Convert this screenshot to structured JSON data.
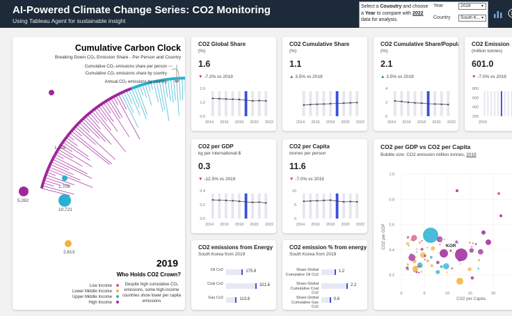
{
  "header": {
    "title": "AI-Powered Climate Change Series: CO2 Monitoring",
    "subtitle": "Using Tableau Agent for sustainable insight"
  },
  "controls": {
    "i1": "Select a ",
    "i2": "Cououtry",
    "i3": " and choose a ",
    "i4": "Year",
    "i5": " to compare with ",
    "i6": "2022",
    "i7": " data for analysis.",
    "year_label": "Year",
    "year_value": "2019",
    "country_label": "Country",
    "country_value": "South K..."
  },
  "clock": {
    "title": "Cumulative Carbon Clock",
    "subtitle": "Breaking Down CO₂ Emission Share - Per Person and Country",
    "legend": [
      "Cumulative CO₂ emissions share per person",
      "Cumulative CO₂ emissions share by country",
      "Annual CO₂ emissions by country"
    ],
    "labels": [
      "1,105",
      "1,705",
      "10,721",
      "5,262",
      "2,613"
    ],
    "year": "2019",
    "question": "Who Holds CO2 Crown?",
    "income_groups": [
      {
        "label": "Low Income",
        "color": "#d6567c"
      },
      {
        "label": "Lower Middle Income",
        "color": "#f4b23a"
      },
      {
        "label": "Upper Middle Income",
        "color": "#2ab0d0"
      },
      {
        "label": "High Income",
        "color": "#a0279b"
      }
    ],
    "note": "Despite high cumulative CO₂ emissions, some high-income countries show lower per capita emissions"
  },
  "cards": [
    {
      "title": "CO2 Global Share",
      "unit": "(%)",
      "value": "1.6",
      "change": "-7.2% vs 2019",
      "dir": "down",
      "yticks": [
        "2.0",
        "1.0",
        "0.0"
      ],
      "xticks": [
        "2014",
        "2016",
        "2018",
        "2020",
        "2022"
      ],
      "trend": [
        0.64,
        0.63,
        0.62,
        0.61,
        0.6,
        0.58,
        0.55,
        0.56,
        0.55
      ]
    },
    {
      "title": "CO2 Cumulative Share",
      "unit": "(%)",
      "value": "1.1",
      "change": "3.5% vs 2019",
      "dir": "up",
      "yticks": [],
      "xticks": [
        "2014",
        "2016",
        "2018",
        "2020",
        "2022"
      ],
      "trend": [
        0.4,
        0.42,
        0.43,
        0.44,
        0.45,
        0.46,
        0.47,
        0.48,
        0.49
      ]
    },
    {
      "title": "CO2 Cumulative Share/Population",
      "unit": "(%)",
      "value": "2.1",
      "change": "3.5% vs 2019",
      "dir": "up",
      "yticks": [
        "4",
        "2",
        "0"
      ],
      "xticks": [
        "2014",
        "2016",
        "2018",
        "2020",
        "2022"
      ],
      "trend": [
        0.55,
        0.53,
        0.5,
        0.48,
        0.47,
        0.45,
        0.44,
        0.43,
        0.42
      ]
    },
    {
      "title": "CO2 Emission",
      "unit": "(million tonnes)",
      "value": "601.0",
      "change": "-7.0% vs 2019",
      "dir": "down",
      "yticks": [
        "800",
        "600",
        "400",
        "200"
      ],
      "xticks": [
        "2016"
      ],
      "trend": []
    },
    {
      "title": "CO2 per GDP",
      "unit": "kg per international-$",
      "value": "0.3",
      "change": "-12.5% vs 2019",
      "dir": "down",
      "yticks": [
        "0.4",
        "0.2",
        "0.0"
      ],
      "xticks": [
        "2014",
        "2016",
        "2018",
        "2020",
        "2022"
      ],
      "trend": [
        0.67,
        0.66,
        0.65,
        0.64,
        0.62,
        0.6,
        0.58,
        0.59,
        0.56
      ]
    },
    {
      "title": "CO2 per Capita",
      "unit": "tonnes per person",
      "value": "11.6",
      "change": "-7.0% vs 2019",
      "dir": "down",
      "yticks": [
        "10",
        "5",
        "0"
      ],
      "xticks": [
        "2014",
        "2016",
        "2018",
        "2020",
        "2022"
      ],
      "trend": [
        0.62,
        0.63,
        0.64,
        0.65,
        0.66,
        0.63,
        0.6,
        0.61,
        0.6
      ]
    }
  ],
  "energy": {
    "title": "CO2 emissions from Energy",
    "subtitle": "South Korea from 2019",
    "rows": [
      {
        "label": "Oil Co2",
        "value": "175.8",
        "frac": 0.55
      },
      {
        "label": "Coal Co2",
        "value": "321.6",
        "frac": 1.0
      },
      {
        "label": "Gas Co2",
        "value": "113.8",
        "frac": 0.35
      }
    ]
  },
  "energy_pct": {
    "title": "CO2 emission % from energy",
    "subtitle": "South Korea from 2019",
    "rows": [
      {
        "label": "Share Global Cumulative Oil Co2",
        "value": "1.2",
        "frac": 0.55
      },
      {
        "label": "Share Global Cumulative Coal Co2",
        "value": "2.2",
        "frac": 1.0
      },
      {
        "label": "Share Global Cumulative Gas Co2",
        "value": "0.8",
        "frac": 0.36
      }
    ]
  },
  "scatter": {
    "title": "CO2 per GDP vs CO2 per Capita",
    "subtitle_a": "Bubble size: CO2 emission million tonnes, ",
    "subtitle_b": "2019",
    "xlabel": "CO2 per Capita",
    "ylabel": "CO2 per GDP",
    "xticks": [
      "0",
      "5",
      "10",
      "15",
      "20",
      "25"
    ],
    "yticks": [
      "1.0",
      "0.8",
      "0.6",
      "0.4",
      "0.2"
    ],
    "highlight": "KOR"
  },
  "colors": {
    "header": "#1c2a39",
    "accent": "#3b4fd8",
    "high": "#a0279b",
    "upper_middle": "#2ab0d0",
    "lower_middle": "#f4b23a",
    "low": "#d6567c"
  }
}
